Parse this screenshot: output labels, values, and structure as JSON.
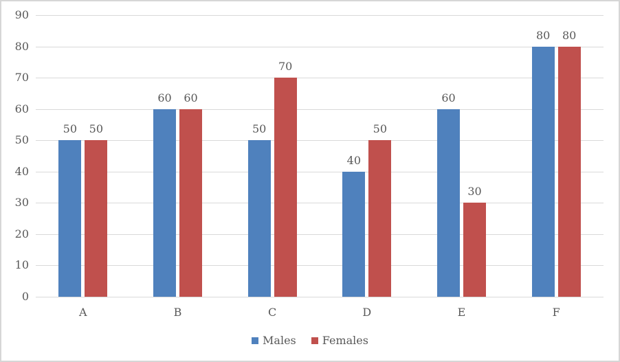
{
  "chart_data": {
    "type": "bar",
    "title": "",
    "xlabel": "",
    "ylabel": "",
    "categories": [
      "A",
      "B",
      "C",
      "D",
      "E",
      "F"
    ],
    "series": [
      {
        "name": "Males",
        "color": "#4F81BD",
        "values": [
          50,
          60,
          50,
          40,
          60,
          80
        ]
      },
      {
        "name": "Females",
        "color": "#C0504D",
        "values": [
          50,
          60,
          70,
          50,
          30,
          80
        ]
      }
    ],
    "ylim": [
      0,
      90
    ],
    "ytick_step": 10,
    "yticks": [
      0,
      10,
      20,
      30,
      40,
      50,
      60,
      70,
      80,
      90
    ],
    "grid": true,
    "gridline_color": "#D9D9D9",
    "axis_text_color": "#595959",
    "data_labels": true,
    "legend_position": "bottom",
    "frame_border_color": "#D6D6D6",
    "background_color": "#FFFFFF"
  }
}
